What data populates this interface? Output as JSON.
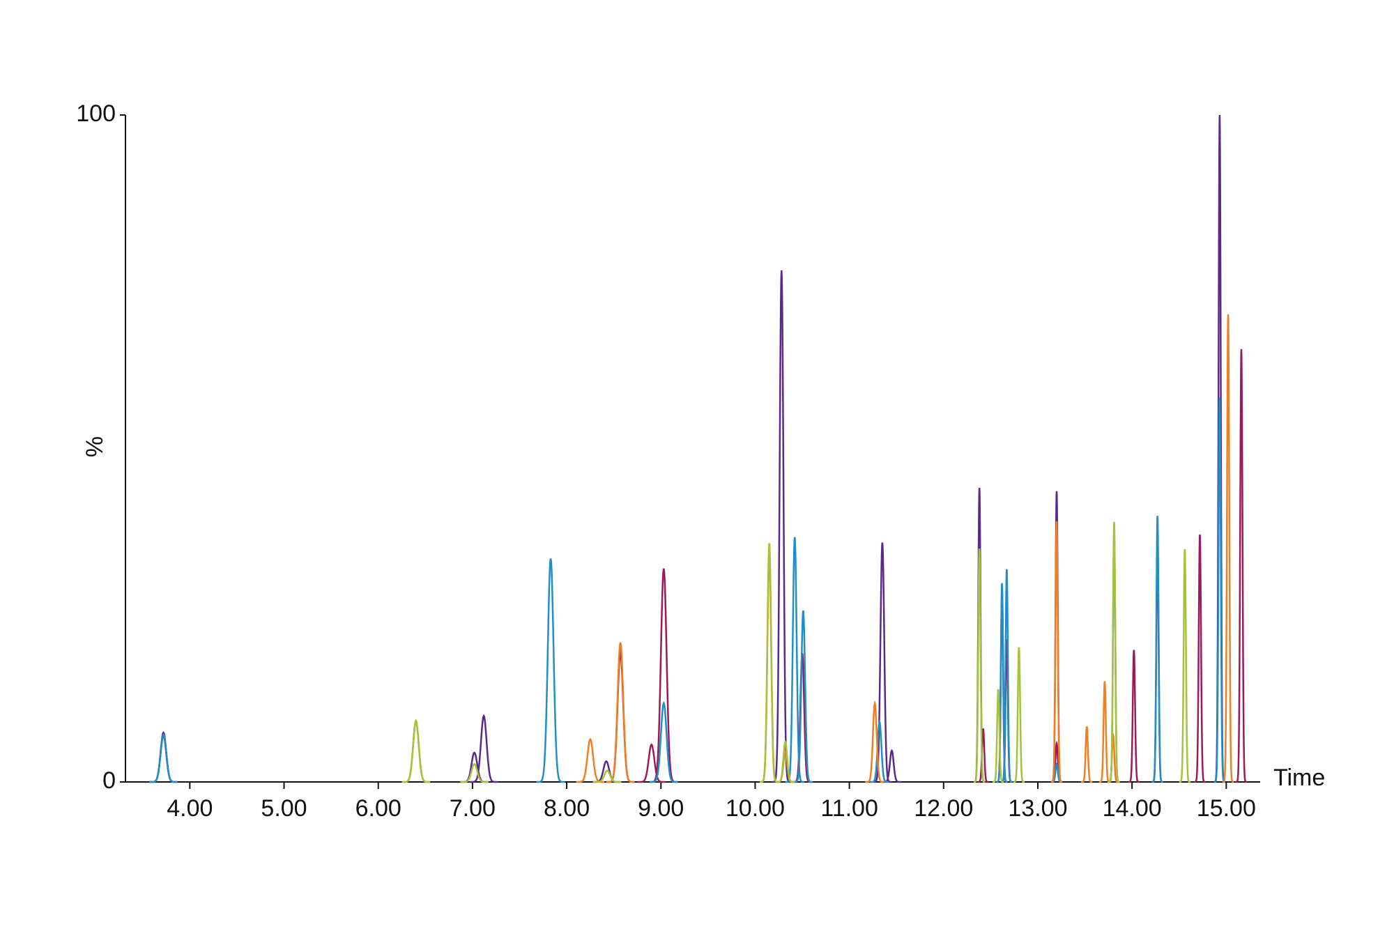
{
  "chart_data": {
    "type": "chromatogram",
    "x_label": "Time",
    "y_label": "%",
    "xlim": [
      3.317,
      15.36
    ],
    "ylim": [
      0,
      100
    ],
    "xticks": [
      {
        "value": 4,
        "label": "4.00"
      },
      {
        "value": 5,
        "label": "5.00"
      },
      {
        "value": 6,
        "label": "6.00"
      },
      {
        "value": 7,
        "label": "7.00"
      },
      {
        "value": 8,
        "label": "8.00"
      },
      {
        "value": 9,
        "label": "9.00"
      },
      {
        "value": 10,
        "label": "10.00"
      },
      {
        "value": 11,
        "label": "11.00"
      },
      {
        "value": 12,
        "label": "12.00"
      },
      {
        "value": 13,
        "label": "13.00"
      },
      {
        "value": 14,
        "label": "14.00"
      },
      {
        "value": 15,
        "label": "15.00"
      }
    ],
    "yticks": [
      0,
      100
    ],
    "grid": false,
    "series": [
      {
        "color": "#5a2a8a",
        "x": [
          3.72,
          7.02,
          7.12,
          8.42,
          10.28,
          11.35,
          11.45,
          12.38,
          13.2,
          14.93
        ],
        "values": [
          7.4,
          4.4,
          9.9,
          3.1,
          76.7,
          35.9,
          4.7,
          44.1,
          43.6,
          100
        ]
      },
      {
        "color": "#9c1a58",
        "x": [
          3.72,
          8.57,
          8.9,
          9.03,
          10.5,
          12.42,
          12.62,
          12.67,
          13.2,
          14.02,
          14.27,
          14.72,
          15.16
        ],
        "values": [
          7.0,
          19.4,
          5.6,
          32.0,
          19.3,
          8.0,
          28.6,
          21.4,
          5.8,
          19.8,
          35.7,
          37.1,
          64.9
        ]
      },
      {
        "color": "#1e8fc8",
        "x": [
          3.72,
          7.83,
          9.03,
          10.42,
          10.51,
          11.32,
          12.62,
          12.67,
          13.2,
          13.81,
          14.27,
          14.93
        ],
        "values": [
          7.1,
          33.5,
          11.8,
          36.7,
          25.7,
          9.0,
          29.8,
          31.9,
          2.7,
          37.3,
          39.9,
          57.6
        ]
      },
      {
        "color": "#f07f22",
        "x": [
          6.4,
          8.25,
          8.57,
          10.15,
          10.32,
          11.27,
          13.2,
          13.52,
          13.71,
          13.8,
          15.02
        ],
        "values": [
          9.0,
          6.4,
          20.9,
          34.2,
          4.4,
          11.8,
          39.1,
          8.3,
          15.1,
          7.0,
          70.1
        ]
      },
      {
        "color": "#a6c23a",
        "x": [
          6.4,
          7.02,
          8.43,
          10.15,
          10.32,
          12.38,
          12.58,
          12.8,
          13.81,
          14.56
        ],
        "values": [
          9.2,
          2.7,
          1.7,
          35.8,
          6.0,
          35.0,
          13.9,
          20.2,
          39.0,
          34.9
        ]
      }
    ]
  }
}
